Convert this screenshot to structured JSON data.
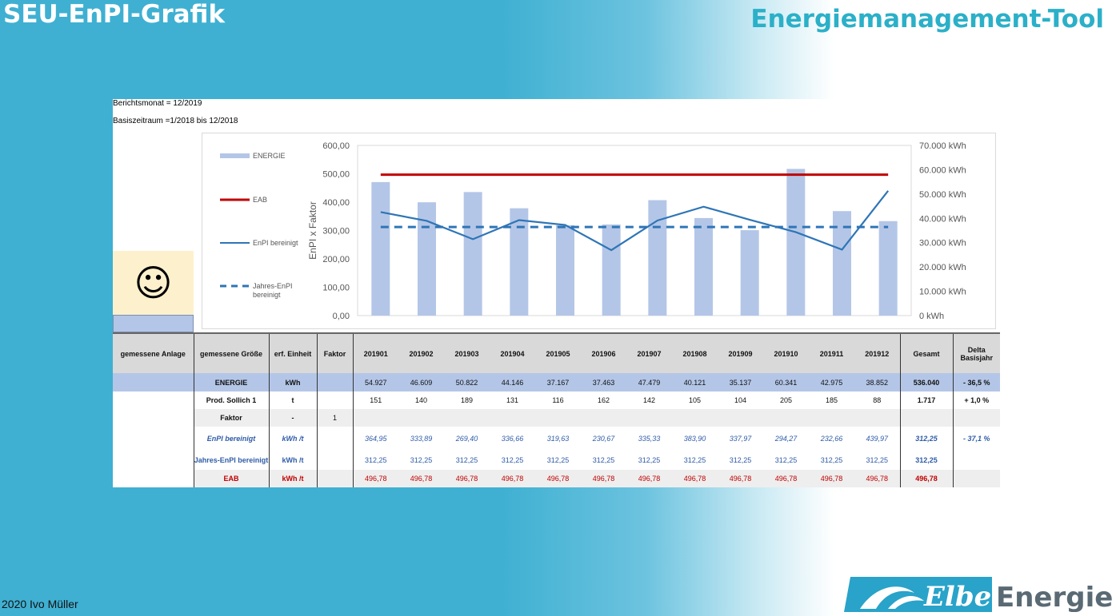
{
  "slide": {
    "title_left": "SEU-EnPI-Grafik",
    "title_right": "Energiemanagement-Tool",
    "footer": "2020 Ivo Müller",
    "logo": {
      "word1": "Elbe",
      "word2": "Energie"
    }
  },
  "report": {
    "berichtsmonat": "Berichtsmonat = 12/2019",
    "basiszeitraum": "Basiszeitraum =1/2018 bis 12/2018",
    "smiley": "☺"
  },
  "chart_data": {
    "type": "bar",
    "categories": [
      "201901",
      "201902",
      "201903",
      "201904",
      "201905",
      "201906",
      "201907",
      "201908",
      "201909",
      "201910",
      "201911",
      "201912"
    ],
    "ylabel": "EnPI x Faktor",
    "ylim": [
      0,
      600
    ],
    "y_ticks": [
      "600,00",
      "500,00",
      "400,00",
      "300,00",
      "200,00",
      "100,00",
      "0,00"
    ],
    "y2lim": [
      0,
      70000
    ],
    "y2_ticks": [
      "70.000 kWh",
      "60.000 kWh",
      "50.000 kWh",
      "40.000 kWh",
      "30.000 kWh",
      "20.000 kWh",
      "10.000 kWh",
      "0 kWh"
    ],
    "legend_position": "left",
    "series": [
      {
        "name": "ENERGIE",
        "kind": "bar",
        "axis": "right",
        "color": "#b4c6e7",
        "values": [
          54927,
          46609,
          50822,
          44146,
          37167,
          37463,
          47479,
          40121,
          35137,
          60341,
          42975,
          38852
        ]
      },
      {
        "name": "EAB",
        "kind": "line",
        "axis": "left",
        "color": "#c00000",
        "values": [
          496.78,
          496.78,
          496.78,
          496.78,
          496.78,
          496.78,
          496.78,
          496.78,
          496.78,
          496.78,
          496.78,
          496.78
        ]
      },
      {
        "name": "EnPI bereinigt",
        "kind": "line",
        "axis": "left",
        "color": "#2e75b6",
        "values": [
          364.95,
          333.89,
          269.4,
          336.66,
          319.63,
          230.67,
          335.33,
          383.9,
          337.97,
          294.27,
          232.66,
          439.97
        ]
      },
      {
        "name": "Jahres-EnPI bereinigt",
        "kind": "dashed",
        "axis": "left",
        "color": "#2e75b6",
        "values": [
          312.25,
          312.25,
          312.25,
          312.25,
          312.25,
          312.25,
          312.25,
          312.25,
          312.25,
          312.25,
          312.25,
          312.25
        ]
      }
    ]
  },
  "table": {
    "headers": [
      "gemessene Anlage",
      "gemessene Größe",
      "erf. Einheit",
      "Faktor",
      "201901",
      "201902",
      "201903",
      "201904",
      "201905",
      "201906",
      "201907",
      "201908",
      "201909",
      "201910",
      "201911",
      "201912",
      "Gesamt",
      "Delta Basisjahr"
    ],
    "rows": [
      {
        "label": "ENERGIE",
        "unit": "kWh",
        "faktor": "",
        "values": [
          "54.927",
          "46.609",
          "50.822",
          "44.146",
          "37.167",
          "37.463",
          "47.479",
          "40.121",
          "35.137",
          "60.341",
          "42.975",
          "38.852"
        ],
        "total": "536.040",
        "delta": "- 36,5 %"
      },
      {
        "label": "Prod. Sollich 1",
        "unit": "t",
        "faktor": "",
        "values": [
          "151",
          "140",
          "189",
          "131",
          "116",
          "162",
          "142",
          "105",
          "104",
          "205",
          "185",
          "88"
        ],
        "total": "1.717",
        "delta": "+ 1,0 %"
      },
      {
        "label": "Faktor",
        "unit": "-",
        "faktor": "1",
        "values": [
          "",
          "",
          "",
          "",
          "",
          "",
          "",
          "",
          "",
          "",
          "",
          ""
        ],
        "total": "",
        "delta": ""
      },
      {
        "label": "EnPI bereinigt",
        "unit": "kWh /t",
        "faktor": "",
        "values": [
          "364,95",
          "333,89",
          "269,40",
          "336,66",
          "319,63",
          "230,67",
          "335,33",
          "383,90",
          "337,97",
          "294,27",
          "232,66",
          "439,97"
        ],
        "total": "312,25",
        "delta": "- 37,1 %"
      },
      {
        "label": "Jahres-EnPI bereinigt",
        "unit": "kWh /t",
        "faktor": "",
        "values": [
          "312,25",
          "312,25",
          "312,25",
          "312,25",
          "312,25",
          "312,25",
          "312,25",
          "312,25",
          "312,25",
          "312,25",
          "312,25",
          "312,25"
        ],
        "total": "312,25",
        "delta": ""
      },
      {
        "label": "EAB",
        "unit": "kWh /t",
        "faktor": "",
        "values": [
          "496,78",
          "496,78",
          "496,78",
          "496,78",
          "496,78",
          "496,78",
          "496,78",
          "496,78",
          "496,78",
          "496,78",
          "496,78",
          "496,78"
        ],
        "total": "496,78",
        "delta": ""
      }
    ]
  }
}
